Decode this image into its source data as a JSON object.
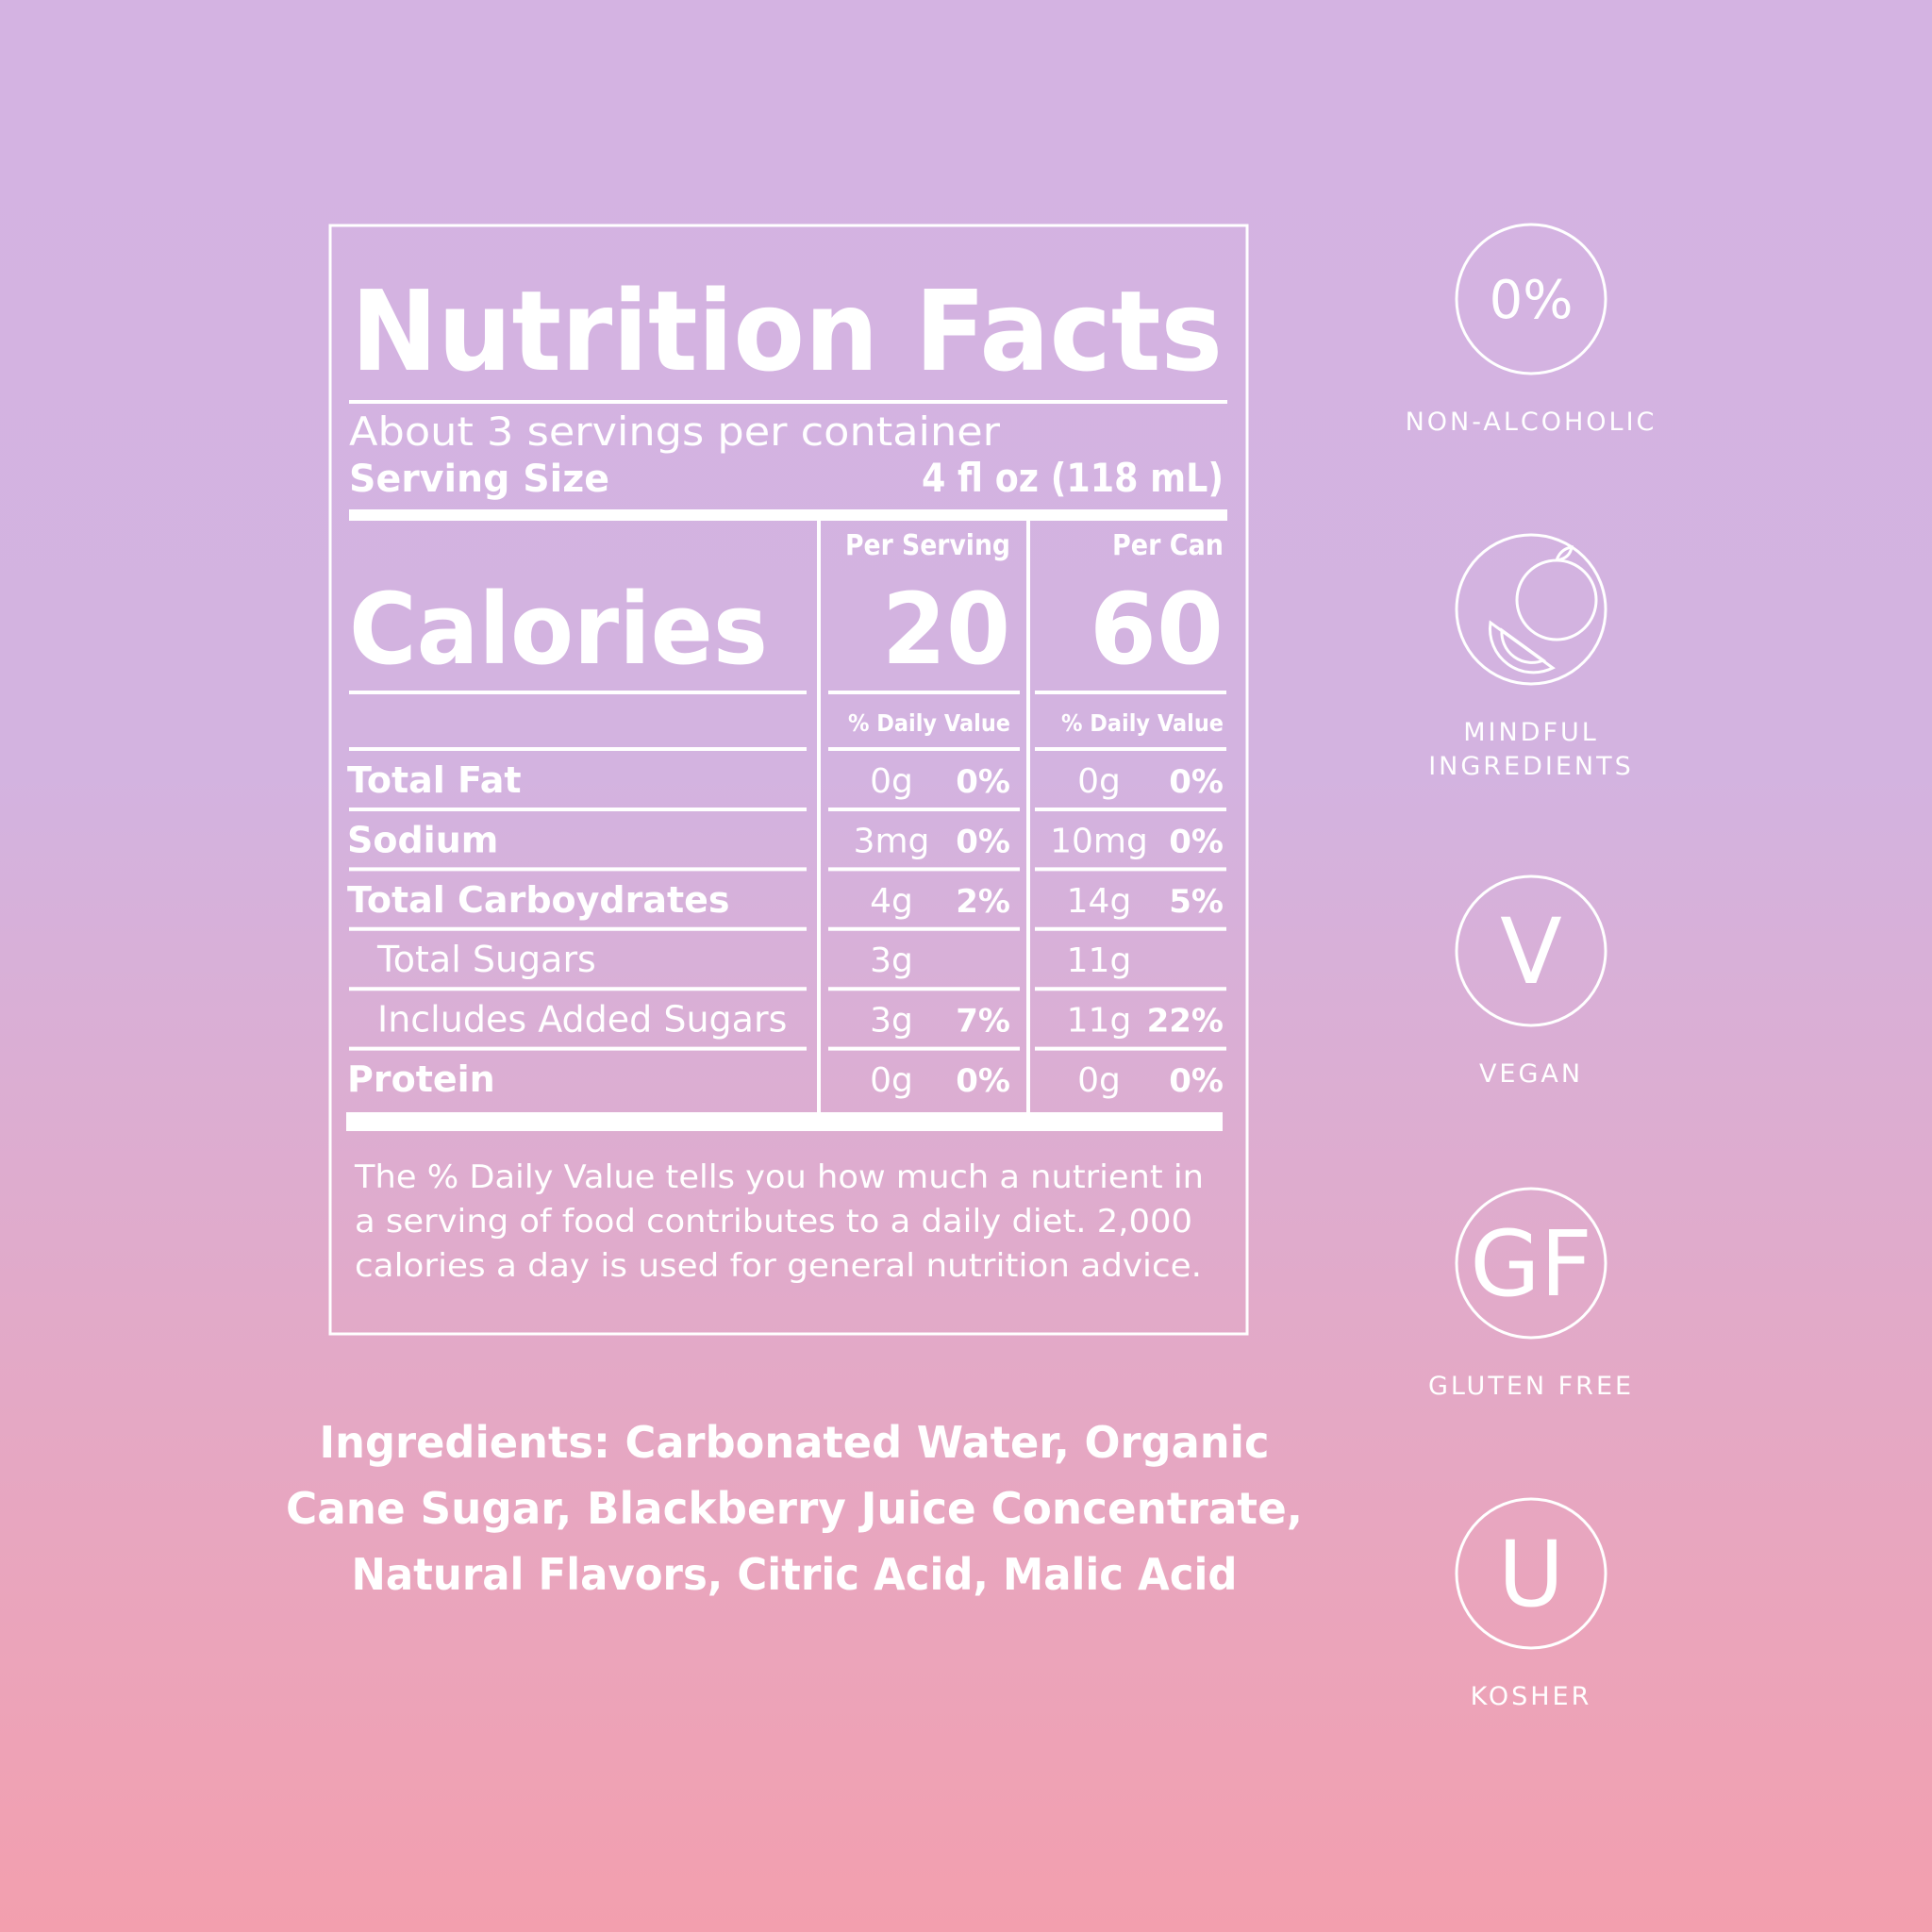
{
  "header": {
    "title": "Nutrition Facts",
    "servings": "About 3 servings per container",
    "serving_size_label": "Serving Size",
    "serving_size": "4 fl oz (118 mL)"
  },
  "calories_label": "Calories",
  "columns": [
    {
      "heading": "Per Serving",
      "calories": "20",
      "dv_heading": "% Daily Value"
    },
    {
      "heading": "Per Can",
      "calories": "60",
      "dv_heading": "% Daily Value"
    }
  ],
  "rows": [
    {
      "name": "Total Fat",
      "indent": false,
      "cells": [
        {
          "amount": "0g",
          "dv": "0%"
        },
        {
          "amount": "0g",
          "dv": "0%"
        }
      ]
    },
    {
      "name": "Sodium",
      "indent": false,
      "cells": [
        {
          "amount": "3mg",
          "dv": "0%"
        },
        {
          "amount": "10mg",
          "dv": "0%"
        }
      ]
    },
    {
      "name": "Total Carboydrates",
      "indent": false,
      "cells": [
        {
          "amount": "4g",
          "dv": "2%"
        },
        {
          "amount": "14g",
          "dv": "5%"
        }
      ]
    },
    {
      "name": "Total Sugars",
      "indent": true,
      "cells": [
        {
          "amount": "3g"
        },
        {
          "amount": "11g"
        }
      ]
    },
    {
      "name": "Includes Added Sugars",
      "indent": true,
      "cells": [
        {
          "amount": "3g",
          "dv": "7%"
        },
        {
          "amount": "11g",
          "dv": "22%"
        }
      ]
    },
    {
      "name": "Protein",
      "indent": false,
      "cells": [
        {
          "amount": "0g",
          "dv": "0%"
        },
        {
          "amount": "0g",
          "dv": "0%"
        }
      ]
    }
  ],
  "footnote": [
    "The % Daily Value tells you how much a nutrient in",
    "a serving of food contributes to a daily diet. 2,000",
    "calories a day is used for general nutrition advice."
  ],
  "ingredients": [
    "Ingredients: Carbonated Water, Organic",
    "Cane Sugar, Blackberry Juice Concentrate,",
    "Natural Flavors, Citric Acid, Malic Acid"
  ],
  "badges": [
    {
      "symbol": "0%",
      "label": [
        "NON-ALCOHOLIC"
      ]
    },
    {
      "label": [
        "MINDFUL",
        "INGREDIENTS"
      ]
    },
    {
      "symbol": "V",
      "label": [
        "VEGAN"
      ]
    },
    {
      "symbol": "GF",
      "label": [
        "GLUTEN FREE"
      ]
    },
    {
      "symbol": "U",
      "label": [
        "KOSHER"
      ]
    }
  ]
}
